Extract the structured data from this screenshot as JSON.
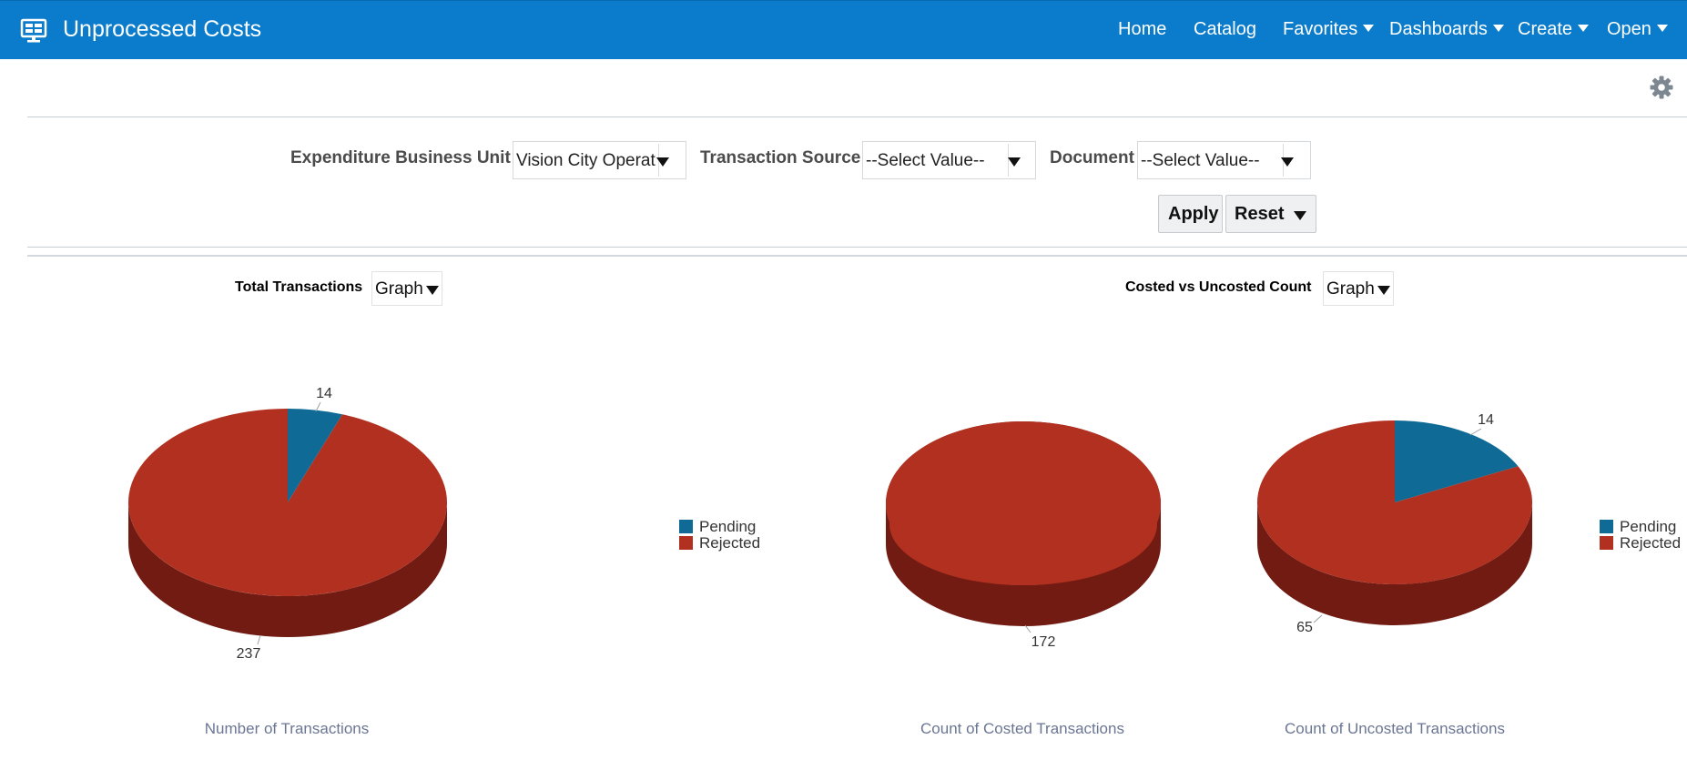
{
  "header": {
    "title": "Unprocessed Costs",
    "nav": [
      {
        "label": "Home"
      },
      {
        "label": "Catalog"
      },
      {
        "label": "Favorites"
      },
      {
        "label": "Dashboards"
      },
      {
        "label": "Create"
      },
      {
        "label": "Open"
      }
    ],
    "brand_color": "#0a7ccb"
  },
  "icons": {
    "logo": "dashboard-monitor-icon",
    "settings": "gear-icon"
  },
  "prompts": {
    "business_unit": {
      "label": "Expenditure Business Unit",
      "value": "Vision City Operat"
    },
    "transaction_source": {
      "label": "Transaction Source",
      "value": "--Select Value--"
    },
    "document": {
      "label": "Document",
      "value": "--Select Value--"
    },
    "apply_label": "Apply",
    "reset_label": "Reset"
  },
  "views": {
    "total_transactions": {
      "label": "Total Transactions",
      "view": "Graph"
    },
    "costed_vs_uncosted": {
      "label": "Costed vs Uncosted Count",
      "view": "Graph"
    }
  },
  "colors": {
    "pending": "#0f6a95",
    "rejected": "#b13020",
    "rejected_side": "#711b13",
    "pending_side": "#0a4a68"
  },
  "chart_data": [
    {
      "type": "pie",
      "title": "Number of Transactions",
      "labels": [
        "Pending",
        "Rejected"
      ],
      "values": [
        14,
        237
      ],
      "legend": "right"
    },
    {
      "type": "pie",
      "title": "Count of Costed Transactions",
      "labels": [
        "Pending",
        "Rejected"
      ],
      "values": [
        0,
        172
      ]
    },
    {
      "type": "pie",
      "title": "Count of Uncosted Transactions",
      "labels": [
        "Pending",
        "Rejected"
      ],
      "values": [
        14,
        65
      ],
      "legend": "right"
    }
  ]
}
